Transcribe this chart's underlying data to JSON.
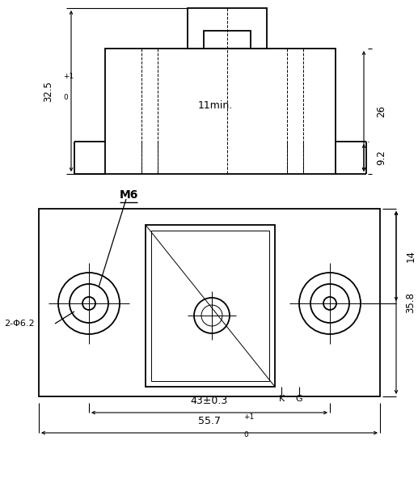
{
  "bg_color": "#ffffff",
  "line_color": "#000000",
  "fig_width": 5.17,
  "fig_height": 5.97,
  "dpi": 100,
  "labels": {
    "label_11min": "11min.",
    "label_32_5": "32.5",
    "label_26": "26",
    "label_9_2": "9.2",
    "label_M6": "M6",
    "label_2phi62": "2-Φ6.2",
    "label_K": "K",
    "label_G": "G",
    "label_14": "14",
    "label_35_8": "35.8",
    "label_43_03": "43±0.3",
    "label_55_7": "55.7"
  }
}
